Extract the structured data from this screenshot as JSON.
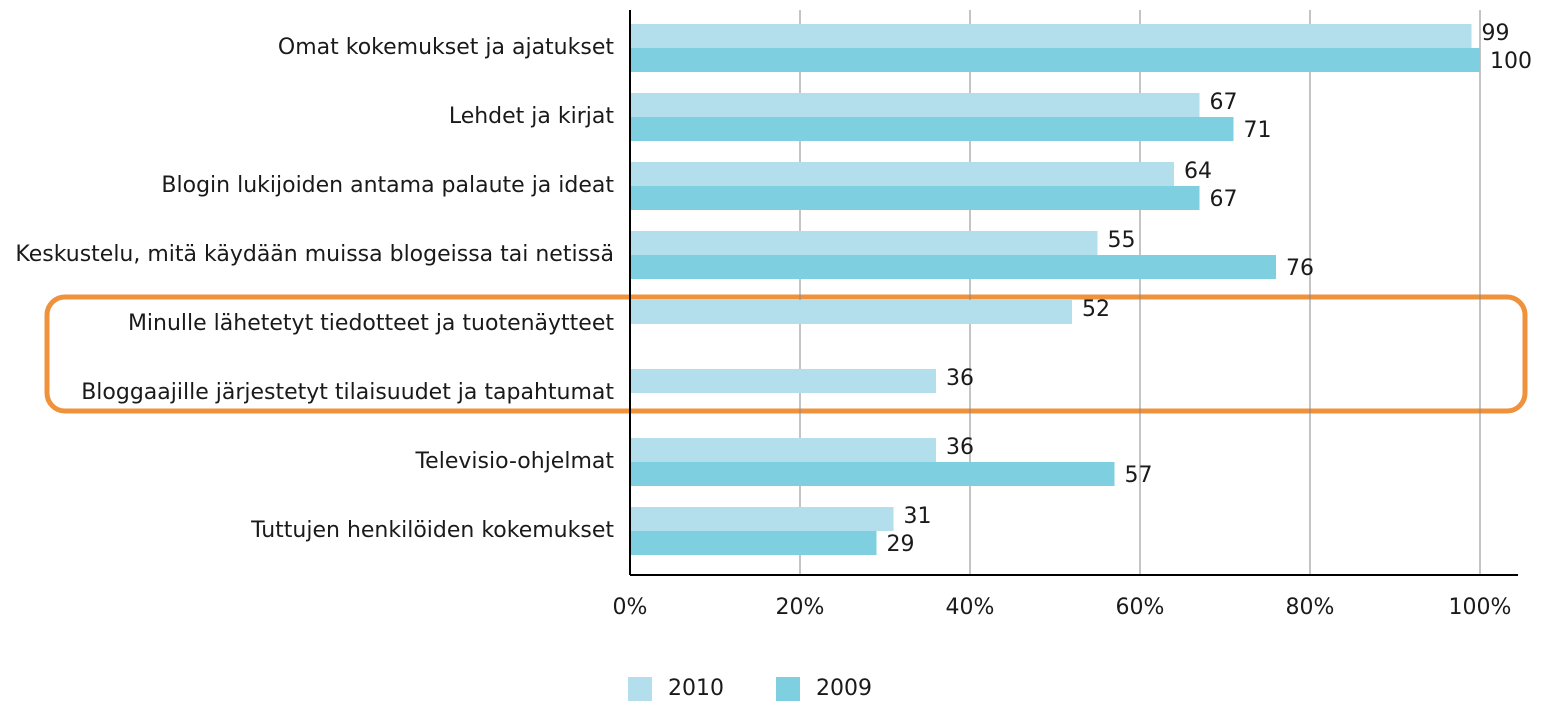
{
  "chart_data": {
    "type": "bar",
    "orientation": "horizontal",
    "categories": [
      "Omat kokemukset ja ajatukset",
      "Lehdet ja kirjat",
      "Blogin lukijoiden antama palaute ja ideat",
      "Keskustelu, mitä käydään muissa blogeissa tai netissä",
      "Minulle lähetetyt tiedotteet ja tuotenäytteet",
      "Bloggaajille järjestetyt tilaisuudet ja tapahtumat",
      "Televisio-ohjelmat",
      "Tuttujen henkilöiden kokemukset"
    ],
    "series": [
      {
        "name": "2010",
        "color": "#b3dfec",
        "values": [
          99,
          67,
          64,
          55,
          52,
          36,
          36,
          31
        ]
      },
      {
        "name": "2009",
        "color": "#7ecfe0",
        "values": [
          100,
          71,
          67,
          76,
          null,
          null,
          57,
          29
        ]
      }
    ],
    "xlim": [
      0,
      100
    ],
    "xticks": [
      {
        "value": 0,
        "label": "0%"
      },
      {
        "value": 20,
        "label": "20%"
      },
      {
        "value": 40,
        "label": "40%"
      },
      {
        "value": 60,
        "label": "60%"
      },
      {
        "value": 80,
        "label": "80%"
      },
      {
        "value": 100,
        "label": "100%"
      }
    ],
    "grid": true,
    "legend": "bottom"
  }
}
